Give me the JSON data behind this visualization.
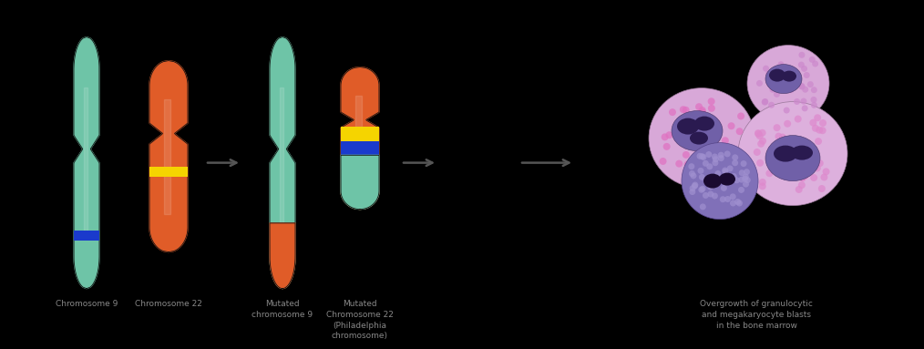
{
  "bg_color": "#000000",
  "chr9_color": "#6ec4a7",
  "chr22_color": "#e05c28",
  "yellow_band": "#f5d400",
  "blue_band": "#1a3acc",
  "teal_band": "#6ec4a7",
  "arrow_color": "#555555",
  "text_color": "#888888",
  "labels": {
    "chr9": "Chromosome 9",
    "chr22": "Chromosome 22",
    "mut_chr9": "Mutated\nchromosome 9",
    "mut_chr22": "Mutated\nChromosome 22\n(Philadelphia\nchromosome)",
    "cells": "Overgrowth of granulocytic\nand megakaryocyte blasts\nin the bone marrow"
  },
  "label_fontsize": 6.5
}
